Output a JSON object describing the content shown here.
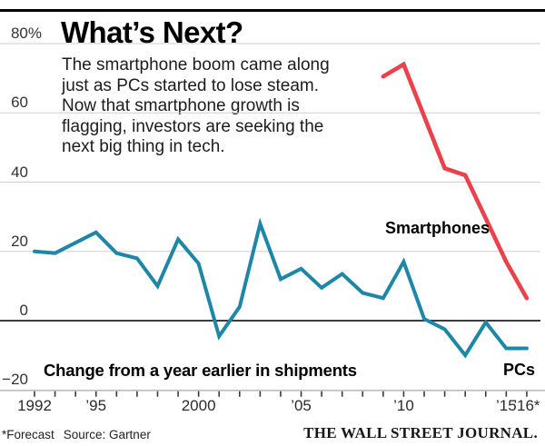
{
  "header": {
    "title": "What’s Next?",
    "intro_lines": [
      "The smartphone boom came along",
      "just as PCs started to lose steam.",
      "Now that smartphone growth is",
      "flagging, investors are seeking the",
      "next big thing in tech."
    ]
  },
  "chart_data": {
    "type": "line",
    "title": "What’s Next?",
    "subtitle": "The smartphone boom came along just as PCs started to lose steam. Now that smartphone growth is flagging, investors are seeking the next big thing in tech.",
    "annotation": "Change from a year earlier in shipments",
    "unit": "percent change from a year earlier",
    "grid": true,
    "legend_position": "inline-labels",
    "xlim": [
      1992,
      2016
    ],
    "ylim": [
      -20,
      80
    ],
    "yticks": [
      {
        "value": 80,
        "label": "80%"
      },
      {
        "value": 60,
        "label": "60"
      },
      {
        "value": 40,
        "label": "40"
      },
      {
        "value": 20,
        "label": "20"
      },
      {
        "value": 0,
        "label": "0"
      },
      {
        "value": -20,
        "label": "−20"
      }
    ],
    "xticks": [
      {
        "year": 1992,
        "label": "1992"
      },
      {
        "year": 1995,
        "label": "’95"
      },
      {
        "year": 2000,
        "label": "2000"
      },
      {
        "year": 2005,
        "label": "’05"
      },
      {
        "year": 2010,
        "label": "’10"
      },
      {
        "year": 2015,
        "label": "’15"
      },
      {
        "year": 2016,
        "label": "’16*"
      }
    ],
    "tick_every_year": true,
    "series": [
      {
        "name": "Smartphones",
        "color": "#eb414b",
        "years": [
          2009,
          2010,
          2011,
          2012,
          2013,
          2014,
          2015,
          2016
        ],
        "values": [
          70.5,
          74,
          59,
          44,
          42,
          29.5,
          17,
          6.5
        ]
      },
      {
        "name": "PCs",
        "color": "#1e87a8",
        "years": [
          1992,
          1993,
          1994,
          1995,
          1996,
          1997,
          1998,
          1999,
          2000,
          2001,
          2002,
          2003,
          2004,
          2005,
          2006,
          2007,
          2008,
          2009,
          2010,
          2011,
          2012,
          2013,
          2014,
          2015,
          2016
        ],
        "values": [
          20,
          19.5,
          22.5,
          25.5,
          19.5,
          18,
          10,
          23.5,
          16.5,
          -4.5,
          4,
          28,
          12,
          15,
          9.5,
          13.5,
          8,
          6.5,
          17,
          0.5,
          -2.5,
          -10,
          -0.5,
          -8,
          -8
        ]
      }
    ]
  },
  "footer": {
    "forecast_note": "*Forecast",
    "source": "Source: Gartner",
    "brand": "THE WALL STREET JOURNAL."
  },
  "colors": {
    "smartphones_line": "#eb414b",
    "pcs_line": "#1e87a8",
    "grid_line": "#cfcfcf",
    "zero_line": "#1f1f1f",
    "axis_line": "#a9a9a9",
    "tick_mark": "#3a3a3a",
    "top_rule": "#000000"
  }
}
